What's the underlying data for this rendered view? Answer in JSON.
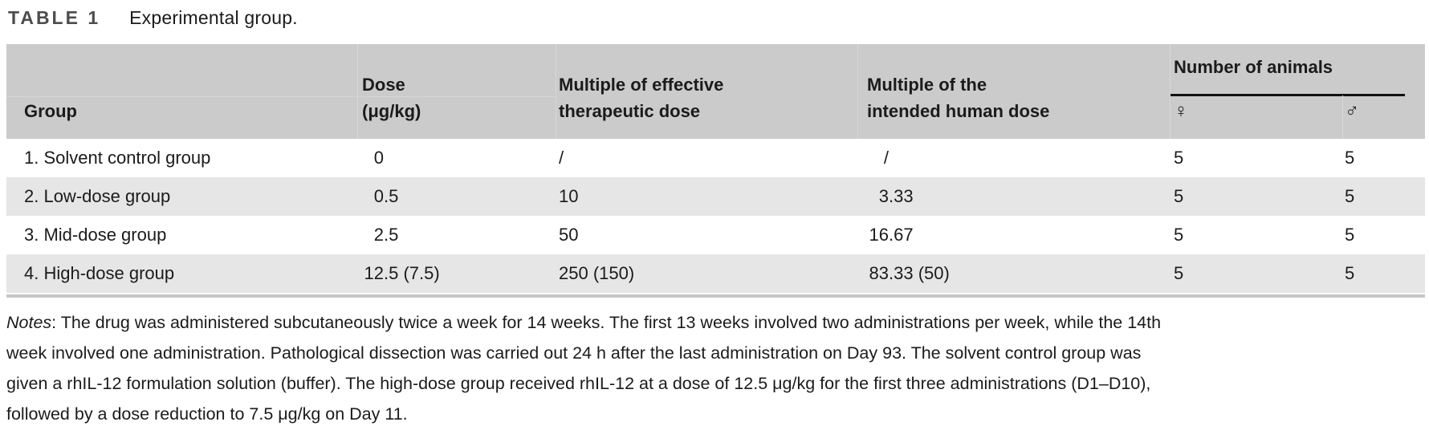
{
  "caption": {
    "label": "TABLE 1",
    "title": "Experimental group."
  },
  "table": {
    "columns": {
      "group": {
        "line1": "Group"
      },
      "dose": {
        "line1": "Dose",
        "line2": "(μg/kg)"
      },
      "multiple_effective": {
        "line1": "Multiple of effective",
        "line2": "therapeutic dose"
      },
      "multiple_human": {
        "line1": "Multiple of the",
        "line2": "intended human dose"
      },
      "animals_spanner": "Number of animals",
      "female_symbol": "♀",
      "male_symbol": "♂"
    },
    "rows": [
      {
        "group": "1. Solvent control group",
        "dose": "0",
        "multiple_effective": "/",
        "multiple_human": "/",
        "female": "5",
        "male": "5"
      },
      {
        "group": "2. Low-dose group",
        "dose": "0.5",
        "multiple_effective": "10",
        "multiple_human": "3.33",
        "female": "5",
        "male": "5"
      },
      {
        "group": "3. Mid-dose group",
        "dose": "2.5",
        "multiple_effective": "50",
        "multiple_human": "16.67",
        "female": "5",
        "male": "5"
      },
      {
        "group": "4. High-dose group",
        "dose": "12.5 (7.5)",
        "multiple_effective": "250 (150)",
        "multiple_human": "83.33 (50)",
        "female": "5",
        "male": "5"
      }
    ]
  },
  "notes": {
    "prefix": "Notes",
    "line1_rest": ": The drug was administered subcutaneously twice a week for 14 weeks. The first 13 weeks involved two administrations per week, while the 14th",
    "line2": "week involved one administration. Pathological dissection was carried out 24 h after the last administration on Day 93. The solvent control group was",
    "line3": "given a rhIL-12 formulation solution (buffer). The high-dose group received rhIL-12 at a dose of 12.5 μg/kg for the first three administrations (D1–D10),",
    "line4": "followed by a dose reduction to 7.5 μg/kg on Day 11."
  },
  "colors": {
    "header_bg": "#cbcbcb",
    "row_alt_bg": "#e6e6e6",
    "caption_label": "#4d4d4d",
    "text": "#1b1b1b",
    "spanner_rule": "#121212"
  }
}
